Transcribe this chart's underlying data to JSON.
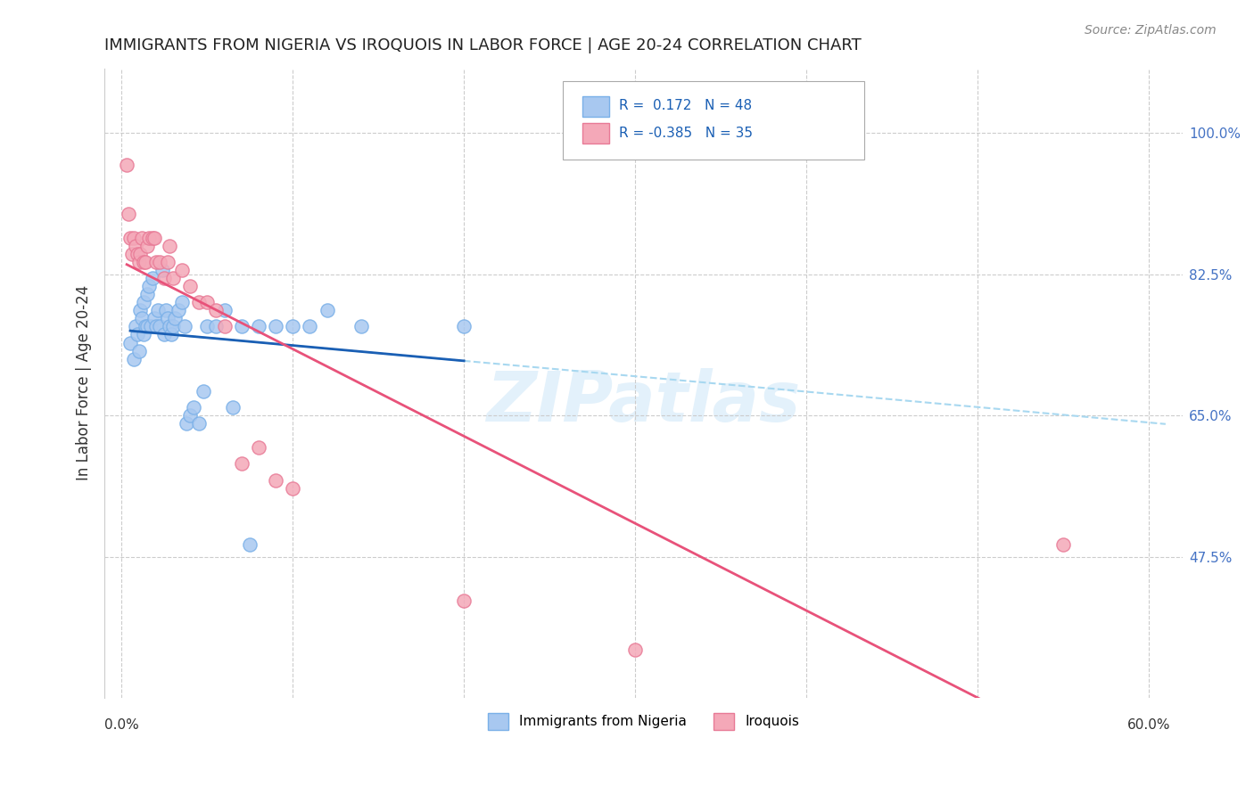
{
  "title": "IMMIGRANTS FROM NIGERIA VS IROQUOIS IN LABOR FORCE | AGE 20-24 CORRELATION CHART",
  "source": "Source: ZipAtlas.com",
  "ylabel": "In Labor Force | Age 20-24",
  "yticks": [
    47.5,
    65.0,
    82.5,
    100.0
  ],
  "ytick_labels": [
    "47.5%",
    "65.0%",
    "82.5%",
    "100.0%"
  ],
  "watermark": "ZIPatlas",
  "nigeria_color": "#a8c8f0",
  "nigeria_edge": "#7ab0e8",
  "iroquois_color": "#f4a8b8",
  "iroquois_edge": "#e87a96",
  "nigeria_line_color": "#1a5fb4",
  "iroquois_line_color": "#e8527a",
  "dashed_line_color": "#a8d8f0",
  "nigeria_points_x": [
    0.005,
    0.007,
    0.008,
    0.009,
    0.01,
    0.011,
    0.012,
    0.013,
    0.013,
    0.014,
    0.015,
    0.015,
    0.016,
    0.017,
    0.018,
    0.019,
    0.02,
    0.021,
    0.022,
    0.024,
    0.025,
    0.026,
    0.027,
    0.028,
    0.029,
    0.03,
    0.031,
    0.033,
    0.035,
    0.037,
    0.038,
    0.04,
    0.042,
    0.045,
    0.048,
    0.05,
    0.055,
    0.06,
    0.065,
    0.07,
    0.075,
    0.08,
    0.09,
    0.1,
    0.11,
    0.12,
    0.14,
    0.2
  ],
  "nigeria_points_y": [
    0.74,
    0.72,
    0.76,
    0.75,
    0.73,
    0.78,
    0.77,
    0.79,
    0.75,
    0.76,
    0.8,
    0.76,
    0.81,
    0.76,
    0.82,
    0.77,
    0.76,
    0.78,
    0.76,
    0.83,
    0.75,
    0.78,
    0.77,
    0.76,
    0.75,
    0.76,
    0.77,
    0.78,
    0.79,
    0.76,
    0.64,
    0.65,
    0.66,
    0.64,
    0.68,
    0.76,
    0.76,
    0.78,
    0.66,
    0.76,
    0.49,
    0.76,
    0.76,
    0.76,
    0.76,
    0.78,
    0.76,
    0.76
  ],
  "iroquois_points_x": [
    0.003,
    0.004,
    0.005,
    0.006,
    0.007,
    0.008,
    0.009,
    0.01,
    0.011,
    0.012,
    0.013,
    0.014,
    0.015,
    0.016,
    0.018,
    0.019,
    0.02,
    0.022,
    0.025,
    0.027,
    0.028,
    0.03,
    0.035,
    0.04,
    0.045,
    0.05,
    0.055,
    0.06,
    0.07,
    0.08,
    0.09,
    0.1,
    0.2,
    0.3,
    0.55
  ],
  "iroquois_points_y": [
    0.96,
    0.9,
    0.87,
    0.85,
    0.87,
    0.86,
    0.85,
    0.84,
    0.85,
    0.87,
    0.84,
    0.84,
    0.86,
    0.87,
    0.87,
    0.87,
    0.84,
    0.84,
    0.82,
    0.84,
    0.86,
    0.82,
    0.83,
    0.81,
    0.79,
    0.79,
    0.78,
    0.76,
    0.59,
    0.61,
    0.57,
    0.56,
    0.42,
    0.36,
    0.49
  ],
  "xlim": [
    -0.01,
    0.62
  ],
  "ylim": [
    0.3,
    1.08
  ]
}
